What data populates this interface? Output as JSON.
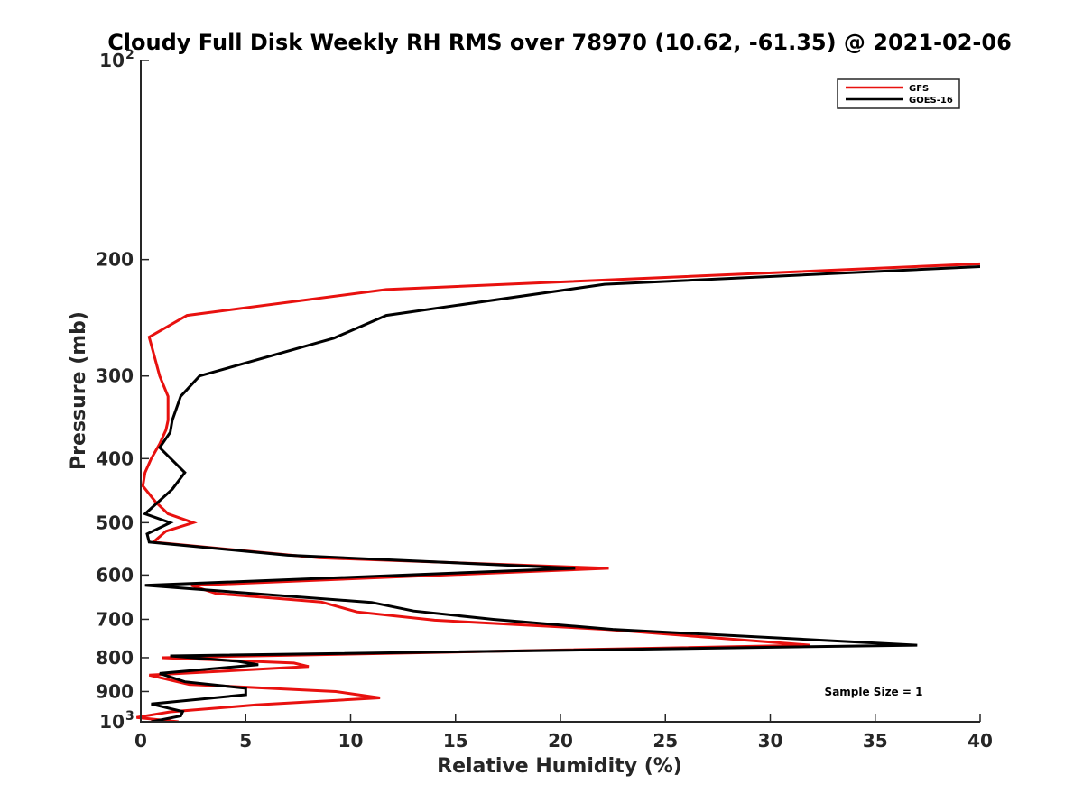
{
  "chart_data": {
    "type": "line",
    "title": "Cloudy Full Disk Weekly RH RMS over 78970 (10.62, -61.35) @ 2021-02-06",
    "xlabel": "Relative Humidity (%)",
    "ylabel": "Pressure (mb)",
    "xlim": [
      0,
      40
    ],
    "ylim": [
      100,
      1000
    ],
    "y_scale": "log",
    "y_reversed": true,
    "x_ticks": [
      "0",
      "5",
      "10",
      "15",
      "20",
      "25",
      "30",
      "35",
      "40"
    ],
    "y_ticks": [
      {
        "value": 100,
        "label": "10",
        "sup": "2"
      },
      {
        "value": 200,
        "label": "200",
        "sup": ""
      },
      {
        "value": 300,
        "label": "300",
        "sup": ""
      },
      {
        "value": 400,
        "label": "400",
        "sup": ""
      },
      {
        "value": 500,
        "label": "500",
        "sup": ""
      },
      {
        "value": 600,
        "label": "600",
        "sup": ""
      },
      {
        "value": 700,
        "label": "700",
        "sup": ""
      },
      {
        "value": 800,
        "label": "800",
        "sup": ""
      },
      {
        "value": 900,
        "label": "900",
        "sup": ""
      },
      {
        "value": 1000,
        "label": "10",
        "sup": "3"
      }
    ],
    "grid": false,
    "legend_position": "top-right",
    "annotation": "Sample Size = 1",
    "series": [
      {
        "name": "GFS",
        "color": "#e8110f",
        "points": [
          [
            40.0,
            203
          ],
          [
            11.7,
            222
          ],
          [
            2.2,
            243
          ],
          [
            0.4,
            262
          ],
          [
            0.9,
            300
          ],
          [
            1.3,
            322
          ],
          [
            1.3,
            350
          ],
          [
            1.2,
            362
          ],
          [
            0.9,
            380
          ],
          [
            0.5,
            400
          ],
          [
            0.2,
            420
          ],
          [
            0.1,
            440
          ],
          [
            0.7,
            465
          ],
          [
            1.3,
            485
          ],
          [
            2.5,
            500
          ],
          [
            1.2,
            515
          ],
          [
            0.6,
            535
          ],
          [
            8.5,
            565
          ],
          [
            22.3,
            586
          ],
          [
            2.4,
            622
          ],
          [
            3.6,
            640
          ],
          [
            8.6,
            659
          ],
          [
            10.3,
            682
          ],
          [
            14.0,
            702
          ],
          [
            22.2,
            725
          ],
          [
            31.9,
            766
          ],
          [
            1.0,
            800
          ],
          [
            7.3,
            815
          ],
          [
            8.0,
            825
          ],
          [
            0.4,
            850
          ],
          [
            2.3,
            878
          ],
          [
            9.3,
            900
          ],
          [
            11.4,
            920
          ],
          [
            5.5,
            943
          ],
          [
            1.4,
            966
          ],
          [
            -0.2,
            985
          ],
          [
            1.8,
            1000
          ]
        ]
      },
      {
        "name": "GOES-16",
        "color": "#000000",
        "points": [
          [
            40.0,
            205
          ],
          [
            22.1,
            218
          ],
          [
            11.7,
            243
          ],
          [
            9.2,
            263
          ],
          [
            2.8,
            300
          ],
          [
            1.9,
            322
          ],
          [
            1.5,
            350
          ],
          [
            1.4,
            365
          ],
          [
            0.9,
            385
          ],
          [
            2.1,
            420
          ],
          [
            1.5,
            445
          ],
          [
            0.2,
            485
          ],
          [
            1.4,
            500
          ],
          [
            0.3,
            520
          ],
          [
            0.4,
            535
          ],
          [
            7.0,
            560
          ],
          [
            20.7,
            586
          ],
          [
            0.2,
            622
          ],
          [
            11.0,
            660
          ],
          [
            13.0,
            680
          ],
          [
            16.8,
            700
          ],
          [
            22.5,
            725
          ],
          [
            37.0,
            766
          ],
          [
            1.4,
            795
          ],
          [
            4.6,
            810
          ],
          [
            5.6,
            820
          ],
          [
            0.9,
            845
          ],
          [
            2.1,
            870
          ],
          [
            5.0,
            890
          ],
          [
            5.0,
            910
          ],
          [
            0.5,
            940
          ],
          [
            2.0,
            965
          ],
          [
            1.9,
            980
          ],
          [
            0.5,
            1000
          ]
        ]
      }
    ]
  }
}
